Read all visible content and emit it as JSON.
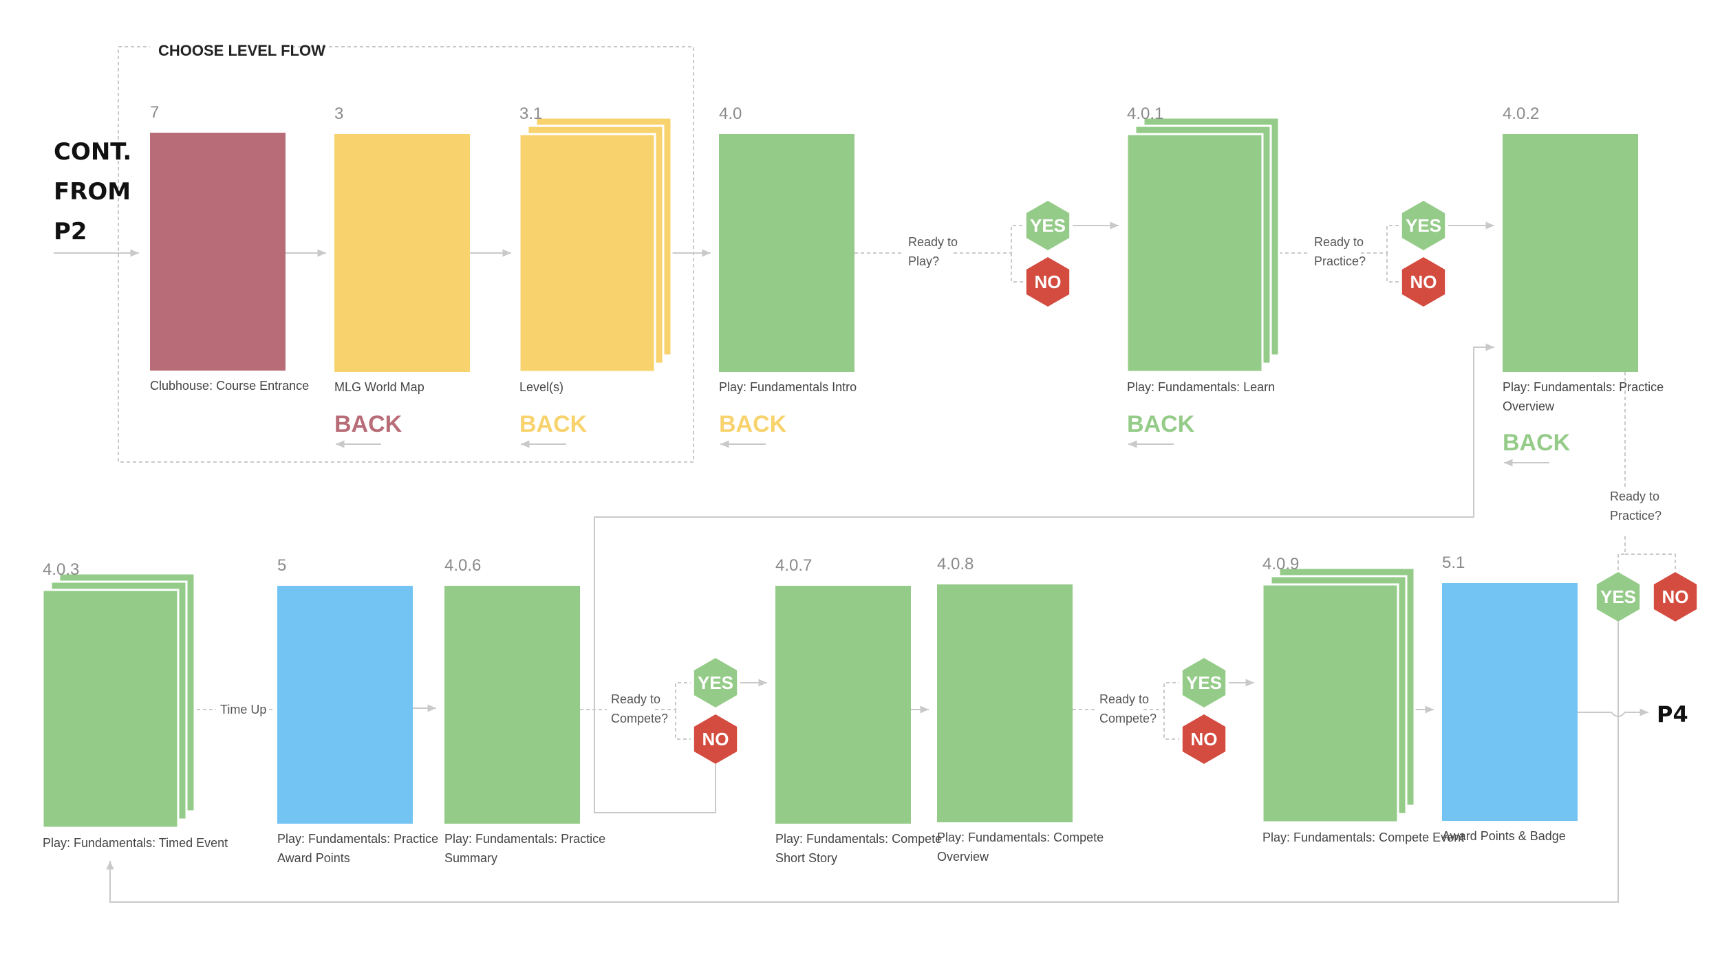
{
  "colors": {
    "green": "#95cb88",
    "yellow": "#f8d36d",
    "red": "#b86c77",
    "blue": "#73c3f3",
    "hex_green": "#95cb88",
    "hex_red": "#d44b3f",
    "line": "#c9c9c9",
    "text": "#444444"
  },
  "group": {
    "label": "CHOOSE LEVEL FLOW"
  },
  "entry": {
    "line1": "CONT.",
    "line2": "FROM",
    "line3": "P2"
  },
  "exit": {
    "label": "P4"
  },
  "screens": [
    {
      "id": "7",
      "label": [
        "Clubhouse: Course Entrance"
      ],
      "color": "red"
    },
    {
      "id": "3",
      "label": [
        "MLG World Map"
      ],
      "color": "yellow"
    },
    {
      "id": "3.1",
      "label": [
        "Level(s)"
      ],
      "color": "yellow"
    },
    {
      "id": "4.0",
      "label": [
        "Play: Fundamentals Intro"
      ],
      "color": "green"
    },
    {
      "id": "4.0.1",
      "label": [
        "Play: Fundamentals: Learn"
      ],
      "color": "green"
    },
    {
      "id": "4.0.2",
      "label": [
        "Play: Fundamentals: Practice",
        "Overview"
      ],
      "color": "green"
    },
    {
      "id": "4.0.3",
      "label": [
        "Play: Fundamentals: Timed Event"
      ],
      "color": "green"
    },
    {
      "id": "5",
      "label": [
        "Play: Fundamentals: Practice",
        "Award Points"
      ],
      "color": "blue"
    },
    {
      "id": "4.0.6",
      "label": [
        "Play: Fundamentals: Practice",
        "Summary"
      ],
      "color": "green"
    },
    {
      "id": "4.0.7",
      "label": [
        "Play: Fundamentals: Compete",
        "Short Story"
      ],
      "color": "green"
    },
    {
      "id": "4.0.8",
      "label": [
        "Play: Fundamentals: Compete",
        "Overview"
      ],
      "color": "green"
    },
    {
      "id": "4.0.9",
      "label": [
        "Play: Fundamentals: Compete Event"
      ],
      "color": "green"
    },
    {
      "id": "5.1",
      "label": [
        "Award Points & Badge"
      ],
      "color": "blue"
    }
  ],
  "back_links": [
    {
      "label": "BACK",
      "color": "red"
    },
    {
      "label": "BACK",
      "color": "yellow"
    },
    {
      "label": "BACK",
      "color": "yellow"
    },
    {
      "label": "BACK",
      "color": "green"
    },
    {
      "label": "BACK",
      "color": "green"
    }
  ],
  "decisions": [
    {
      "question": [
        "Ready to",
        "Play?"
      ],
      "yes": "YES",
      "no": "NO"
    },
    {
      "question": [
        "Ready to",
        "Practice?"
      ],
      "yes": "YES",
      "no": "NO"
    },
    {
      "question": [
        "Ready to",
        "Practice?"
      ],
      "yes": "YES",
      "no": "NO"
    },
    {
      "question": [
        "Ready to",
        "Compete?"
      ],
      "yes": "YES",
      "no": "NO"
    },
    {
      "question": [
        "Ready to",
        "Compete?"
      ],
      "yes": "YES",
      "no": "NO"
    }
  ],
  "edge_labels": {
    "time_up": "Time Up"
  }
}
